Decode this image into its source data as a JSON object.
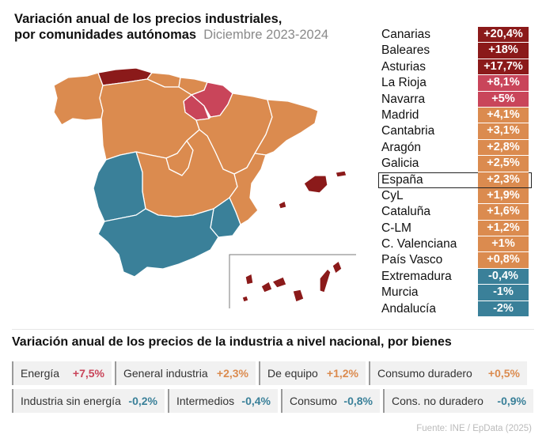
{
  "title": {
    "line1": "Variación anual de los precios industriales,",
    "line2": "por comunidades autónomas",
    "period": "Diciembre 2023-2024"
  },
  "colors": {
    "very_high": "#8b1a1a",
    "high": "#c9455a",
    "medium": "#db8b4f",
    "negative": "#3a8099",
    "map_border": "#ffffff"
  },
  "chart_data": [
    {
      "type": "bar",
      "title": "Variación anual de los precios industriales, por comunidades autónomas",
      "subtitle": "Diciembre 2023-2024",
      "highlight": "España",
      "categories": [
        "Canarias",
        "Baleares",
        "Asturias",
        "La Rioja",
        "Navarra",
        "Madrid",
        "Cantabria",
        "Aragón",
        "Galicia",
        "España",
        "CyL",
        "Cataluña",
        "C-LM",
        "C. Valenciana",
        "País Vasco",
        "Extremadura",
        "Murcia",
        "Andalucía"
      ],
      "values": [
        20.4,
        18,
        17.7,
        8.1,
        5,
        4.1,
        3.1,
        2.8,
        2.5,
        2.3,
        1.9,
        1.6,
        1.2,
        1,
        0.8,
        -0.4,
        -1,
        -2
      ],
      "labels": [
        "+20,4%",
        "+18%",
        "+17,7%",
        "+8,1%",
        "+5%",
        "+4,1%",
        "+3,1%",
        "+2,8%",
        "+2,5%",
        "+2,3%",
        "+1,9%",
        "+1,6%",
        "+1,2%",
        "+1%",
        "+0,8%",
        "-0,4%",
        "-1%",
        "-2%"
      ],
      "colors": [
        "#8b1a1a",
        "#8b1a1a",
        "#8b1a1a",
        "#c9455a",
        "#c9455a",
        "#db8b4f",
        "#db8b4f",
        "#db8b4f",
        "#db8b4f",
        "#db8b4f",
        "#db8b4f",
        "#db8b4f",
        "#db8b4f",
        "#db8b4f",
        "#db8b4f",
        "#3a8099",
        "#3a8099",
        "#3a8099"
      ]
    },
    {
      "type": "table",
      "title": "Variación anual de los precios de la industria a nivel nacional, por bienes",
      "categories": [
        "Energía",
        "General industria",
        "De equipo",
        "Consumo duradero",
        "Industria sin energía",
        "Intermedios",
        "Consumo",
        "Cons. no duradero"
      ],
      "values": [
        7.5,
        2.3,
        1.2,
        0.5,
        -0.2,
        -0.4,
        -0.8,
        -0.9
      ],
      "labels": [
        "+7,5%",
        "+2,3%",
        "+1,2%",
        "+0,5%",
        "-0,2%",
        "-0,4%",
        "-0,8%",
        "-0,9%"
      ],
      "colors": [
        "#c9455a",
        "#db8b4f",
        "#db8b4f",
        "#db8b4f",
        "#3a8099",
        "#3a8099",
        "#3a8099",
        "#3a8099"
      ]
    }
  ],
  "map": {
    "regions": [
      {
        "name": "Galicia",
        "fill": "#db8b4f"
      },
      {
        "name": "Asturias",
        "fill": "#8b1a1a"
      },
      {
        "name": "Cantabria",
        "fill": "#db8b4f"
      },
      {
        "name": "País Vasco",
        "fill": "#db8b4f"
      },
      {
        "name": "Navarra",
        "fill": "#c9455a"
      },
      {
        "name": "La Rioja",
        "fill": "#c9455a"
      },
      {
        "name": "Aragón",
        "fill": "#db8b4f"
      },
      {
        "name": "Cataluña",
        "fill": "#db8b4f"
      },
      {
        "name": "CyL",
        "fill": "#db8b4f"
      },
      {
        "name": "Madrid",
        "fill": "#db8b4f"
      },
      {
        "name": "C-LM",
        "fill": "#db8b4f"
      },
      {
        "name": "C. Valenciana",
        "fill": "#db8b4f"
      },
      {
        "name": "Extremadura",
        "fill": "#3a8099"
      },
      {
        "name": "Andalucía",
        "fill": "#3a8099"
      },
      {
        "name": "Murcia",
        "fill": "#3a8099"
      },
      {
        "name": "Baleares",
        "fill": "#8b1a1a"
      },
      {
        "name": "Canarias",
        "fill": "#8b1a1a"
      }
    ]
  },
  "bottom": {
    "title": "Variación anual de los precios de la industria a nivel nacional, por bienes"
  },
  "source": "Fuente: INE / EpData (2025)"
}
